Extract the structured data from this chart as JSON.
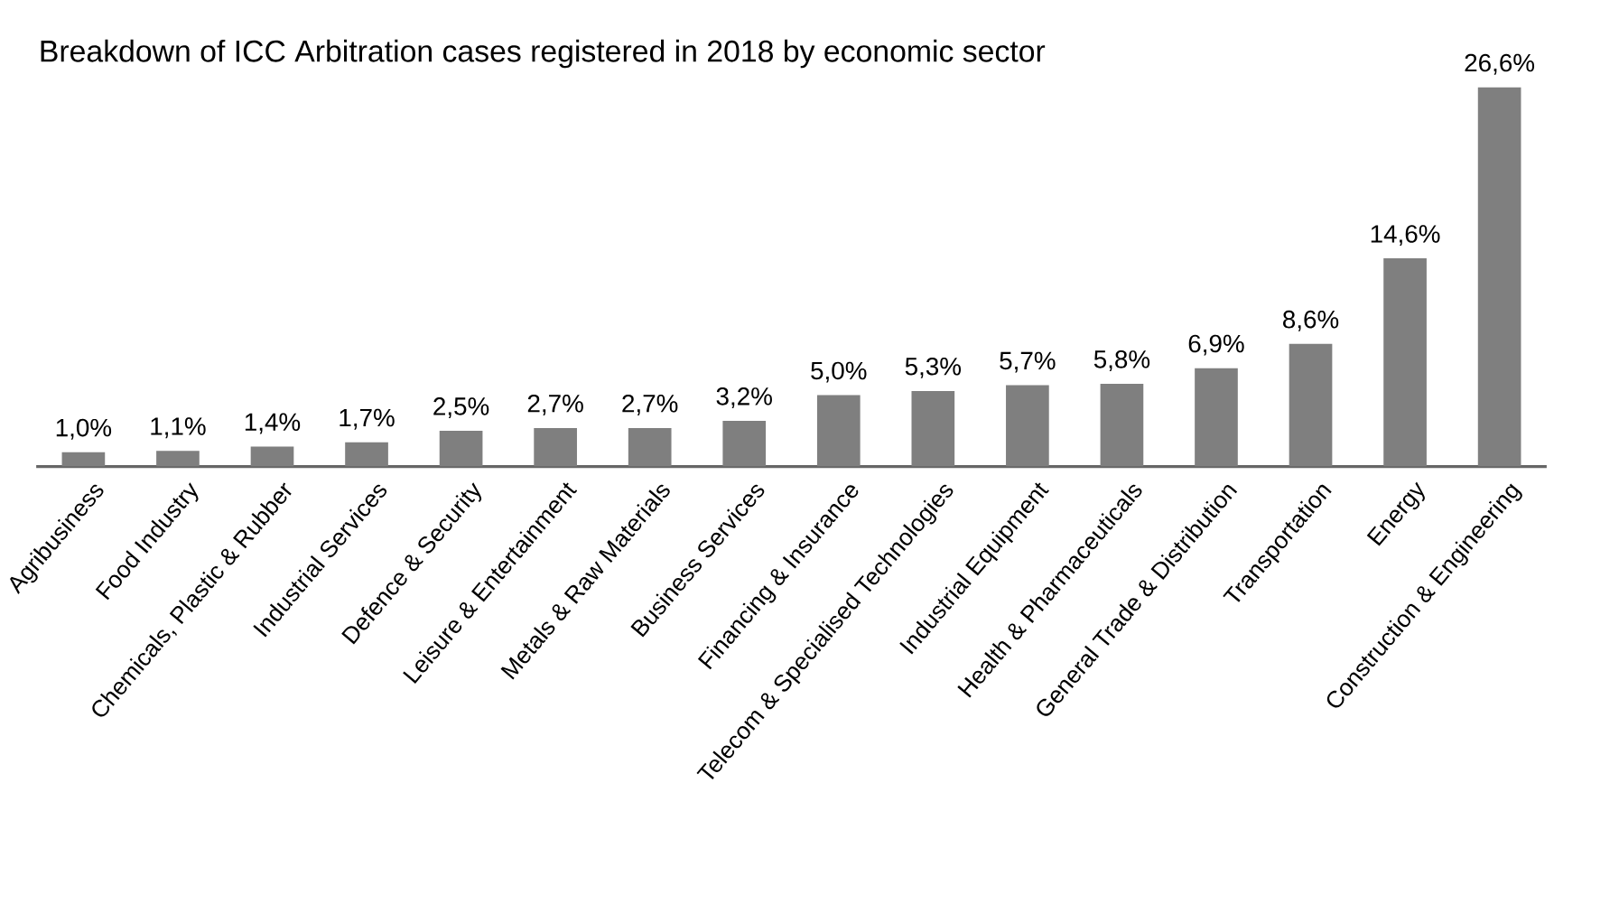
{
  "chart_data": {
    "type": "bar",
    "title": "Breakdown of ICC Arbitration cases registered in 2018 by economic sector",
    "categories": [
      "Agribusiness",
      "Food Industry",
      "Chemicals, Plastic & Rubber",
      "Industrial Services",
      "Defence & Security",
      "Leisure & Entertainment",
      "Metals & Raw Materials",
      "Business Services",
      "Financing & Insurance",
      "Telecom & Specialised Technologies",
      "Industrial Equipment",
      "Health & Pharmaceuticals",
      "General Trade & Distribution",
      "Transportation",
      "Energy",
      "Construction & Engineering"
    ],
    "values": [
      1.0,
      1.1,
      1.4,
      1.7,
      2.5,
      2.7,
      2.7,
      3.2,
      5.0,
      5.3,
      5.7,
      5.8,
      6.9,
      8.6,
      14.6,
      26.6
    ],
    "value_labels": [
      "1,0%",
      "1,1%",
      "1,4%",
      "1,7%",
      "2,5%",
      "2,7%",
      "2,7%",
      "3,2%",
      "5,0%",
      "5,3%",
      "5,7%",
      "5,8%",
      "6,9%",
      "8,6%",
      "14,6%",
      "26,6%"
    ],
    "color": "#7f7f7f"
  }
}
